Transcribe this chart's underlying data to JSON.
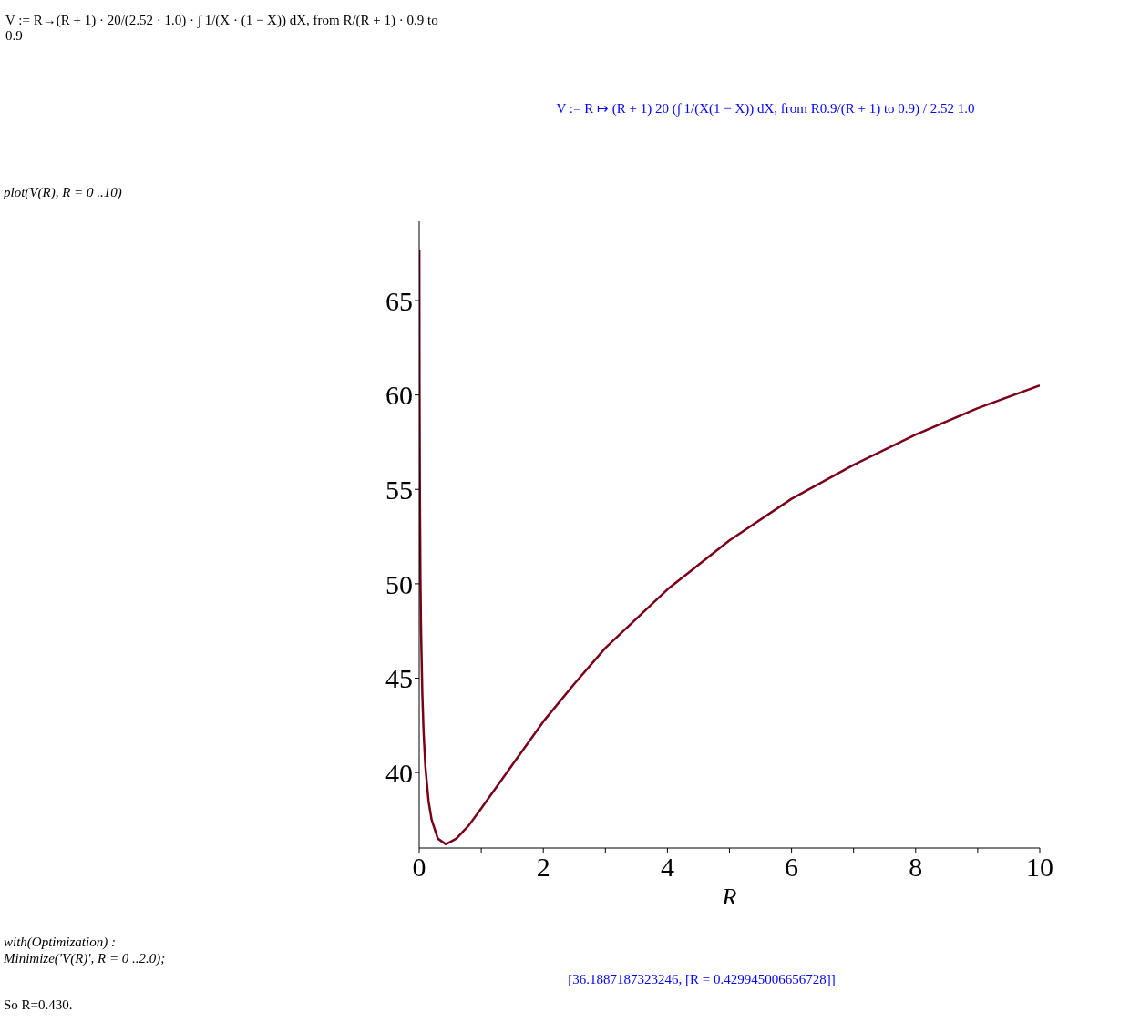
{
  "chart_data": {
    "type": "line",
    "xlabel": "R",
    "annotations": [
      "V := R→(R + 1) · 20/(2.52 · 1.0) · ∫ 1/(X · (1 − X)) dX, from R/(R + 1) · 0.9 to 0.9",
      "V := R ↦ (R + 1) 20 (∫ 1/(X(1 − X)) dX, from R0.9/(R + 1) to 0.9) / 2.52 1.0",
      "plot(V(R), R = 0 ..10)",
      "with(Optimization) :",
      "Minimize('V(R)', R = 0 ..2.0);",
      "[36.1887187323246, [R = 0.429945006656728]]",
      "So R=0.430."
    ],
    "x": [
      0.002,
      0.003,
      0.005,
      0.01,
      0.02,
      0.03,
      0.05,
      0.07,
      0.1,
      0.15,
      0.2,
      0.3,
      0.43,
      0.6,
      0.8,
      1,
      1.5,
      2,
      2.5,
      3,
      4,
      5,
      6,
      7,
      8,
      9,
      10
    ],
    "series": [
      {
        "color": "#7a0019",
        "values": [
          67.7,
          64.6,
          60.6,
          55.4,
          50.3,
          47.5,
          44.2,
          42.2,
          40.3,
          38.5,
          37.5,
          36.5,
          36.2,
          36.5,
          37.2,
          38.1,
          40.4,
          42.7,
          44.7,
          46.6,
          49.7,
          52.3,
          54.5,
          56.3,
          57.9,
          59.3,
          60.5
        ]
      }
    ],
    "xlim": [
      0,
      10
    ],
    "ylim": [
      36,
      69.2
    ],
    "xticks": [
      0,
      {
        "value": 1,
        "label": null
      },
      2,
      {
        "value": 3,
        "label": null
      },
      4,
      {
        "value": 5,
        "label": null
      },
      6,
      {
        "value": 7,
        "label": null
      },
      8,
      {
        "value": 9,
        "label": null
      },
      10
    ],
    "yticks": [
      40,
      45,
      50,
      55,
      60,
      65
    ],
    "grid": false,
    "legend": false,
    "marker": "none",
    "line_style": "solid"
  }
}
